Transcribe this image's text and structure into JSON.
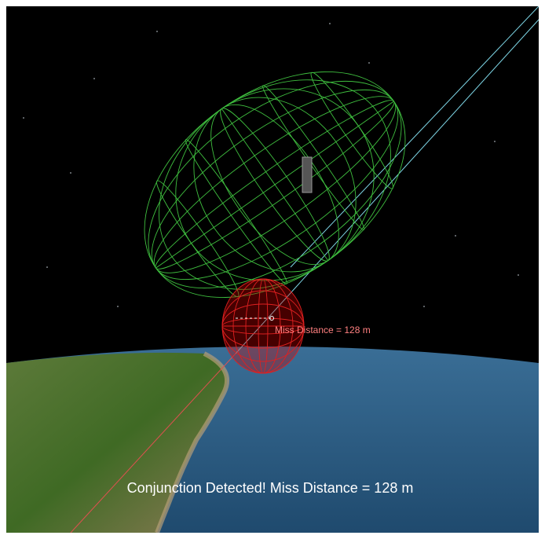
{
  "labels": {
    "ellipsoid_label": "Miss Distance = 128 m",
    "status_message": "Conjunction Detected! Miss Distance = 128 m"
  }
}
